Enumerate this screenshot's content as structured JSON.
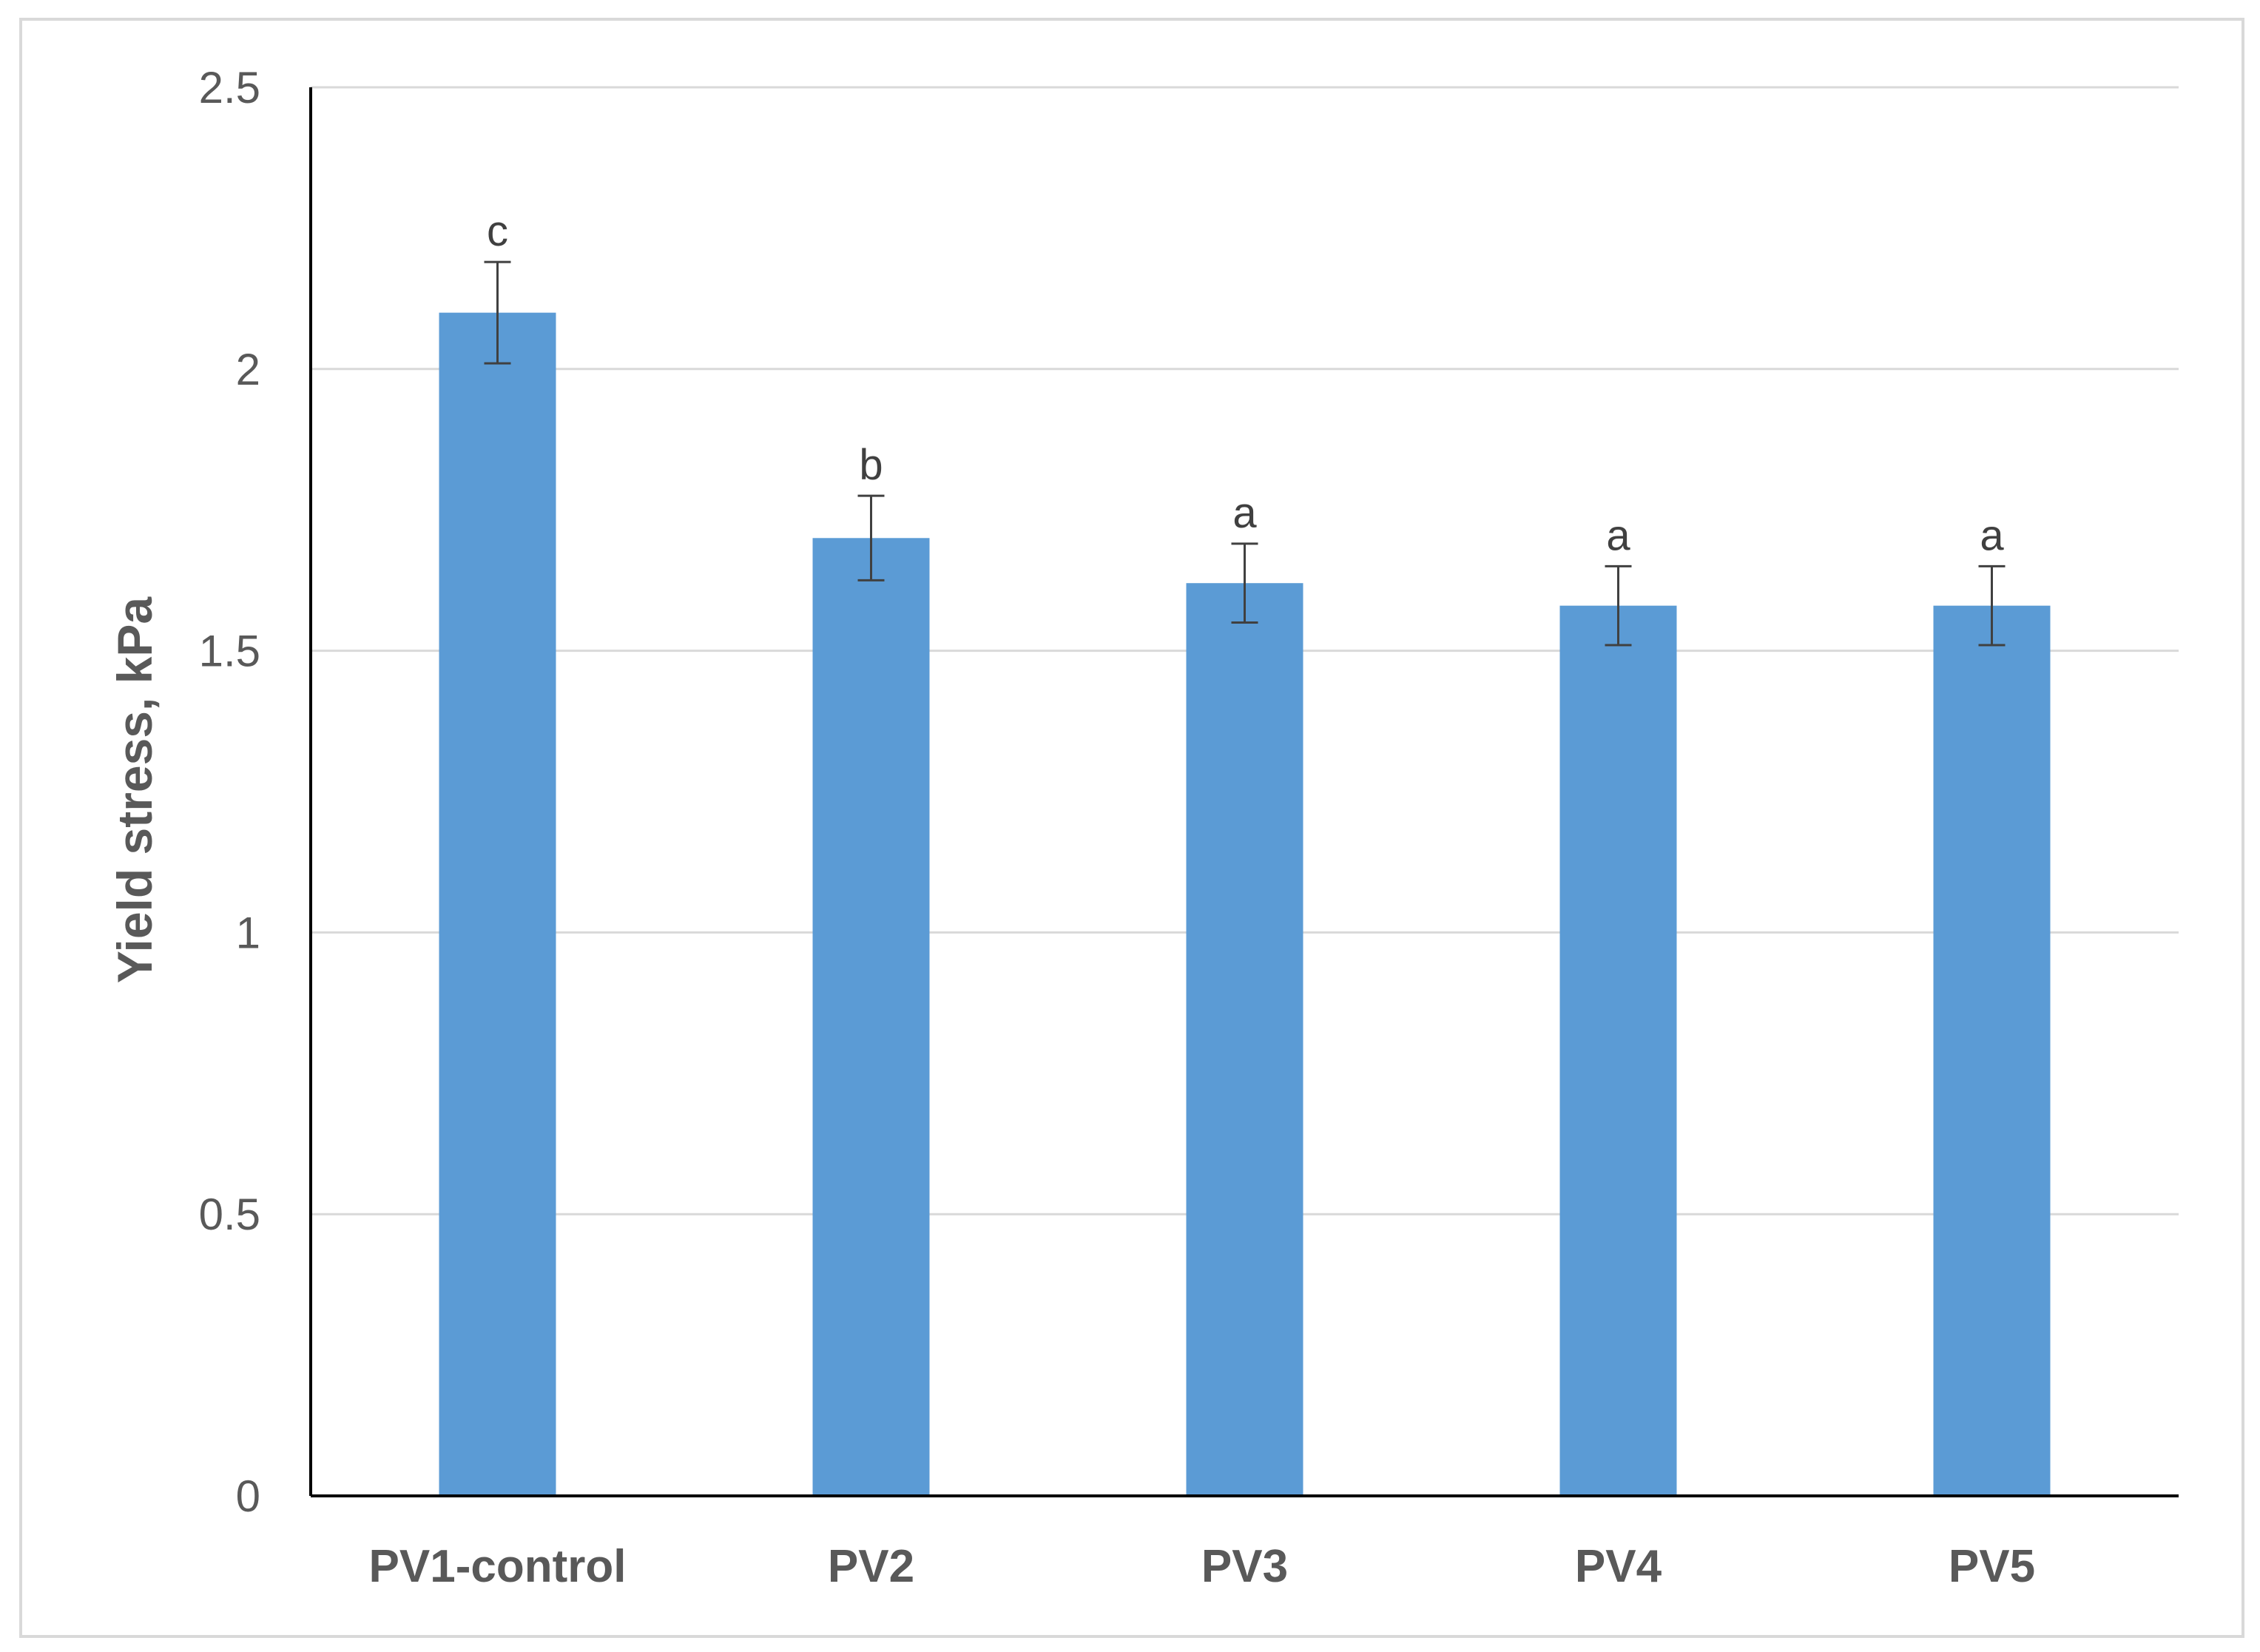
{
  "chart_data": {
    "type": "bar",
    "title": "",
    "xlabel": "",
    "ylabel": "Yield stress, kPa",
    "ylim": [
      0,
      2.5
    ],
    "yticks": [
      "0",
      "0.5",
      "1",
      "1.5",
      "2",
      "2.5"
    ],
    "ytick_values": [
      0,
      0.5,
      1,
      1.5,
      2,
      2.5
    ],
    "grid": true,
    "legend": "none",
    "bar_color": "#5b9bd5",
    "categories": [
      "PV1-control",
      "PV2",
      "PV3",
      "PV4",
      "PV5"
    ],
    "values": [
      2.1,
      1.7,
      1.62,
      1.58,
      1.58
    ],
    "error": [
      0.09,
      0.075,
      0.07,
      0.07,
      0.07
    ],
    "annotations": [
      "c",
      "b",
      "a",
      "a",
      "a"
    ]
  }
}
